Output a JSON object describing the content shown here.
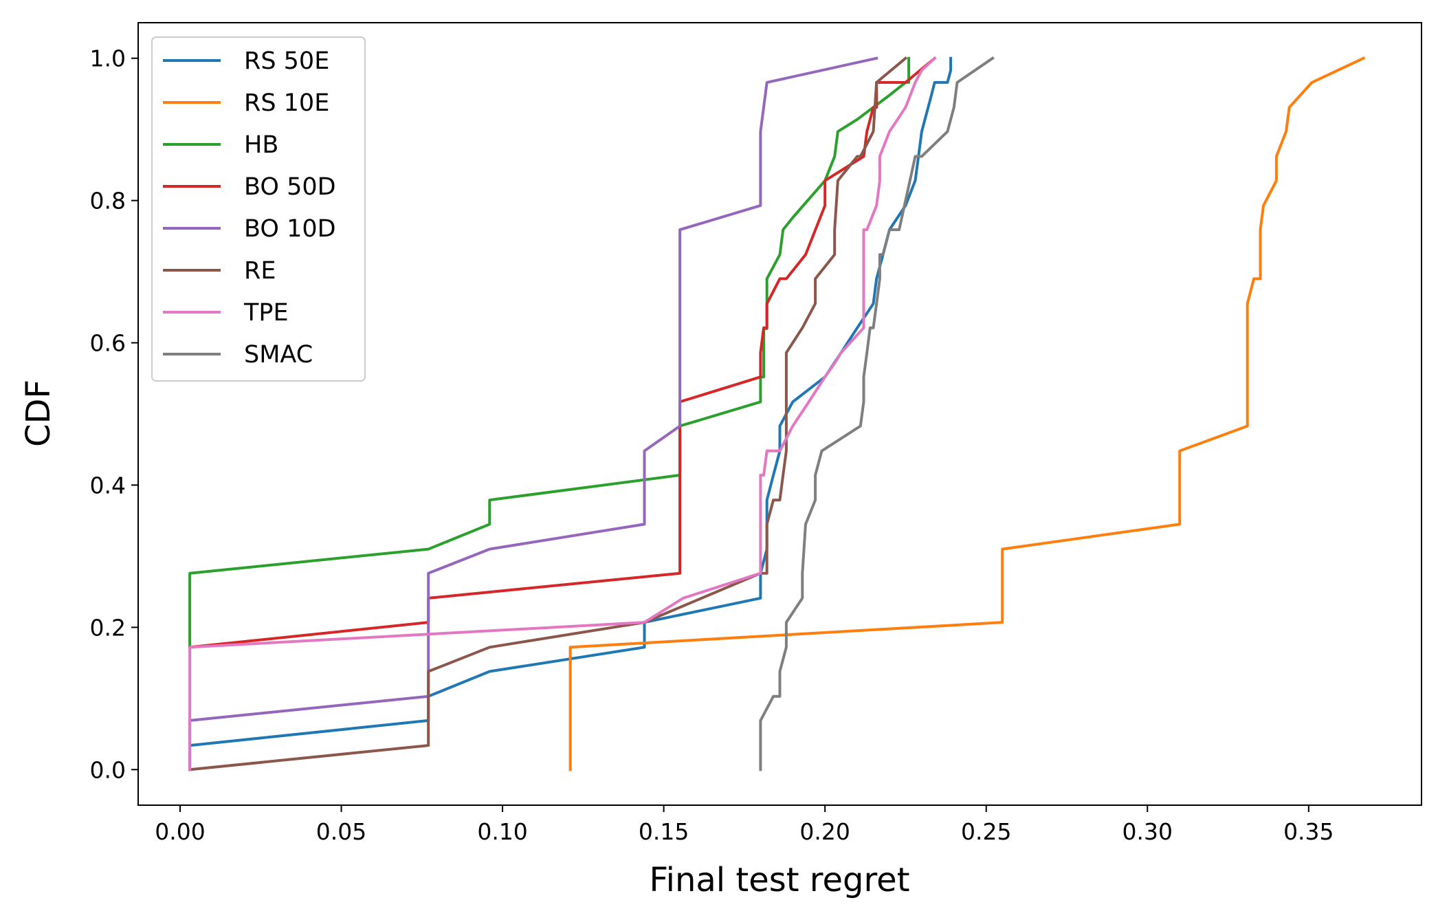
{
  "chart_data": {
    "type": "line",
    "title": "",
    "xlabel": "Final test regret",
    "ylabel": "CDF",
    "xlim": [
      -0.013,
      0.385
    ],
    "ylim": [
      -0.05,
      1.05
    ],
    "xticks": [
      0.0,
      0.05,
      0.1,
      0.15,
      0.2,
      0.25,
      0.3,
      0.35
    ],
    "xtick_labels": [
      "0.00",
      "0.05",
      "0.10",
      "0.15",
      "0.20",
      "0.25",
      "0.30",
      "0.35"
    ],
    "yticks": [
      0.0,
      0.2,
      0.4,
      0.6,
      0.8,
      1.0
    ],
    "ytick_labels": [
      "0.0",
      "0.2",
      "0.4",
      "0.6",
      "0.8",
      "1.0"
    ],
    "grid": false,
    "legend_position": "upper-left",
    "series": [
      {
        "name": "RS 50E",
        "color": "#1f77b4",
        "x": [
          0.003,
          0.003,
          0.077,
          0.077,
          0.096,
          0.144,
          0.144,
          0.18,
          0.18,
          0.182,
          0.182,
          0.184,
          0.186,
          0.186,
          0.19,
          0.2,
          0.205,
          0.21,
          0.215,
          0.216,
          0.218,
          0.22,
          0.225,
          0.228,
          0.229,
          0.23,
          0.231,
          0.232,
          0.233,
          0.234,
          0.236,
          0.238,
          0.239,
          0.239
        ],
        "y": [
          0.0,
          0.034,
          0.069,
          0.103,
          0.138,
          0.172,
          0.207,
          0.241,
          0.276,
          0.31,
          0.379,
          0.414,
          0.448,
          0.483,
          0.517,
          0.552,
          0.586,
          0.621,
          0.655,
          0.69,
          0.724,
          0.759,
          0.793,
          0.828,
          0.862,
          0.897,
          0.914,
          0.931,
          0.948,
          0.966,
          0.966,
          0.966,
          0.983,
          1.0
        ]
      },
      {
        "name": "RS 10E",
        "color": "#ff7f0e",
        "x": [
          0.121,
          0.121,
          0.255,
          0.255,
          0.31,
          0.31,
          0.331,
          0.331,
          0.333,
          0.335,
          0.335,
          0.336,
          0.34,
          0.34,
          0.343,
          0.344,
          0.351,
          0.367
        ],
        "y": [
          0.0,
          0.172,
          0.207,
          0.31,
          0.345,
          0.448,
          0.483,
          0.655,
          0.69,
          0.69,
          0.759,
          0.793,
          0.828,
          0.862,
          0.897,
          0.931,
          0.966,
          1.0
        ]
      },
      {
        "name": "HB",
        "color": "#2ca02c",
        "x": [
          0.003,
          0.003,
          0.077,
          0.096,
          0.096,
          0.155,
          0.155,
          0.18,
          0.18,
          0.181,
          0.181,
          0.182,
          0.182,
          0.186,
          0.187,
          0.19,
          0.2,
          0.203,
          0.204,
          0.21,
          0.215,
          0.22,
          0.225,
          0.226,
          0.226
        ],
        "y": [
          0.172,
          0.276,
          0.31,
          0.345,
          0.379,
          0.414,
          0.483,
          0.517,
          0.552,
          0.552,
          0.62,
          0.62,
          0.69,
          0.724,
          0.759,
          0.776,
          0.828,
          0.862,
          0.897,
          0.914,
          0.931,
          0.948,
          0.966,
          0.966,
          1.0
        ]
      },
      {
        "name": "BO 50D",
        "color": "#d62728",
        "x": [
          0.003,
          0.077,
          0.077,
          0.155,
          0.155,
          0.18,
          0.18,
          0.181,
          0.182,
          0.182,
          0.186,
          0.188,
          0.194,
          0.2,
          0.2,
          0.212,
          0.213,
          0.215,
          0.216,
          0.216,
          0.225,
          0.234
        ],
        "y": [
          0.172,
          0.207,
          0.241,
          0.276,
          0.517,
          0.552,
          0.586,
          0.621,
          0.621,
          0.655,
          0.69,
          0.69,
          0.724,
          0.793,
          0.828,
          0.862,
          0.897,
          0.931,
          0.931,
          0.966,
          0.966,
          1.0
        ]
      },
      {
        "name": "BO 10D",
        "color": "#9467bd",
        "x": [
          0.003,
          0.003,
          0.077,
          0.077,
          0.096,
          0.144,
          0.144,
          0.155,
          0.155,
          0.18,
          0.18,
          0.18,
          0.181,
          0.181,
          0.182,
          0.216
        ],
        "y": [
          0.0,
          0.069,
          0.103,
          0.276,
          0.31,
          0.345,
          0.448,
          0.483,
          0.759,
          0.793,
          0.862,
          0.897,
          0.931,
          0.931,
          0.966,
          1.0
        ]
      },
      {
        "name": "RE",
        "color": "#8c564b",
        "x": [
          0.003,
          0.077,
          0.077,
          0.096,
          0.144,
          0.18,
          0.182,
          0.182,
          0.184,
          0.186,
          0.187,
          0.188,
          0.188,
          0.193,
          0.197,
          0.197,
          0.203,
          0.203,
          0.204,
          0.21,
          0.211,
          0.215,
          0.216,
          0.225
        ],
        "y": [
          0.0,
          0.034,
          0.138,
          0.172,
          0.207,
          0.276,
          0.276,
          0.345,
          0.379,
          0.379,
          0.414,
          0.448,
          0.586,
          0.621,
          0.655,
          0.69,
          0.724,
          0.759,
          0.828,
          0.862,
          0.862,
          0.897,
          0.966,
          1.0
        ]
      },
      {
        "name": "TPE",
        "color": "#e377c2",
        "x": [
          0.003,
          0.003,
          0.144,
          0.156,
          0.18,
          0.18,
          0.181,
          0.182,
          0.186,
          0.19,
          0.195,
          0.2,
          0.203,
          0.205,
          0.212,
          0.212,
          0.213,
          0.216,
          0.217,
          0.217,
          0.22,
          0.225,
          0.228,
          0.23,
          0.234
        ],
        "y": [
          0.0,
          0.172,
          0.207,
          0.241,
          0.276,
          0.414,
          0.414,
          0.448,
          0.448,
          0.483,
          0.517,
          0.552,
          0.571,
          0.586,
          0.621,
          0.759,
          0.759,
          0.793,
          0.828,
          0.862,
          0.897,
          0.931,
          0.966,
          0.983,
          1.0
        ]
      },
      {
        "name": "SMAC",
        "color": "#7f7f7f",
        "x": [
          0.18,
          0.18,
          0.184,
          0.186,
          0.186,
          0.188,
          0.188,
          0.193,
          0.193,
          0.194,
          0.197,
          0.197,
          0.199,
          0.211,
          0.212,
          0.212,
          0.213,
          0.214,
          0.215,
          0.216,
          0.217,
          0.217,
          0.218,
          0.22,
          0.223,
          0.228,
          0.23,
          0.238,
          0.24,
          0.241,
          0.252
        ],
        "y": [
          0.0,
          0.069,
          0.103,
          0.103,
          0.138,
          0.172,
          0.207,
          0.241,
          0.276,
          0.345,
          0.379,
          0.414,
          0.448,
          0.483,
          0.517,
          0.552,
          0.586,
          0.621,
          0.621,
          0.655,
          0.69,
          0.724,
          0.724,
          0.759,
          0.759,
          0.862,
          0.862,
          0.897,
          0.931,
          0.966,
          1.0
        ]
      }
    ]
  }
}
